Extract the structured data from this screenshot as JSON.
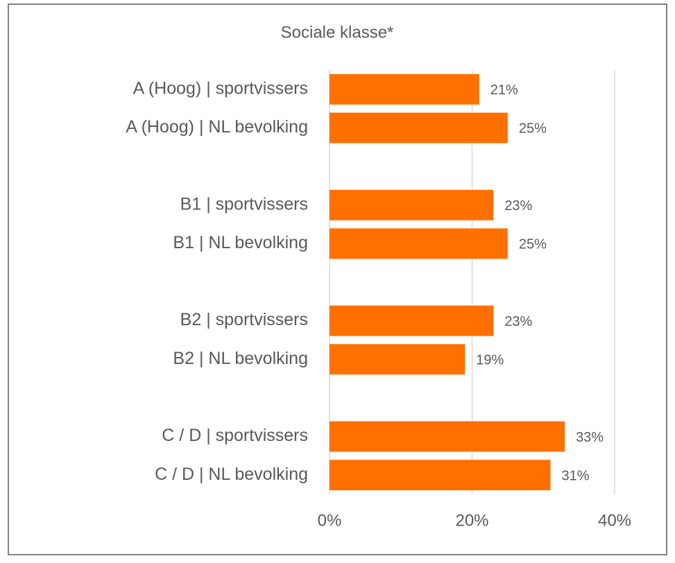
{
  "chart_data": {
    "type": "bar",
    "orientation": "horizontal",
    "title": "Sociale klasse*",
    "categories": [
      "A (Hoog) | sportvissers",
      "A (Hoog) | NL bevolking",
      null,
      "B1 | sportvissers",
      "B1 | NL bevolking",
      null,
      "B2 | sportvissers",
      "B2 | NL bevolking",
      null,
      "C / D | sportvissers",
      "C / D | NL bevolking"
    ],
    "values": [
      21,
      25,
      null,
      23,
      25,
      null,
      23,
      19,
      null,
      33,
      31
    ],
    "value_labels": [
      "21%",
      "25%",
      null,
      "23%",
      "25%",
      null,
      "23%",
      "19%",
      null,
      "33%",
      "31%"
    ],
    "color": "#ff7000",
    "xlim": [
      0,
      40
    ],
    "xticks": [
      {
        "value": 0,
        "label": "0%"
      },
      {
        "value": 20,
        "label": "20%"
      },
      {
        "value": 40,
        "label": "40%"
      }
    ],
    "grid": true
  }
}
